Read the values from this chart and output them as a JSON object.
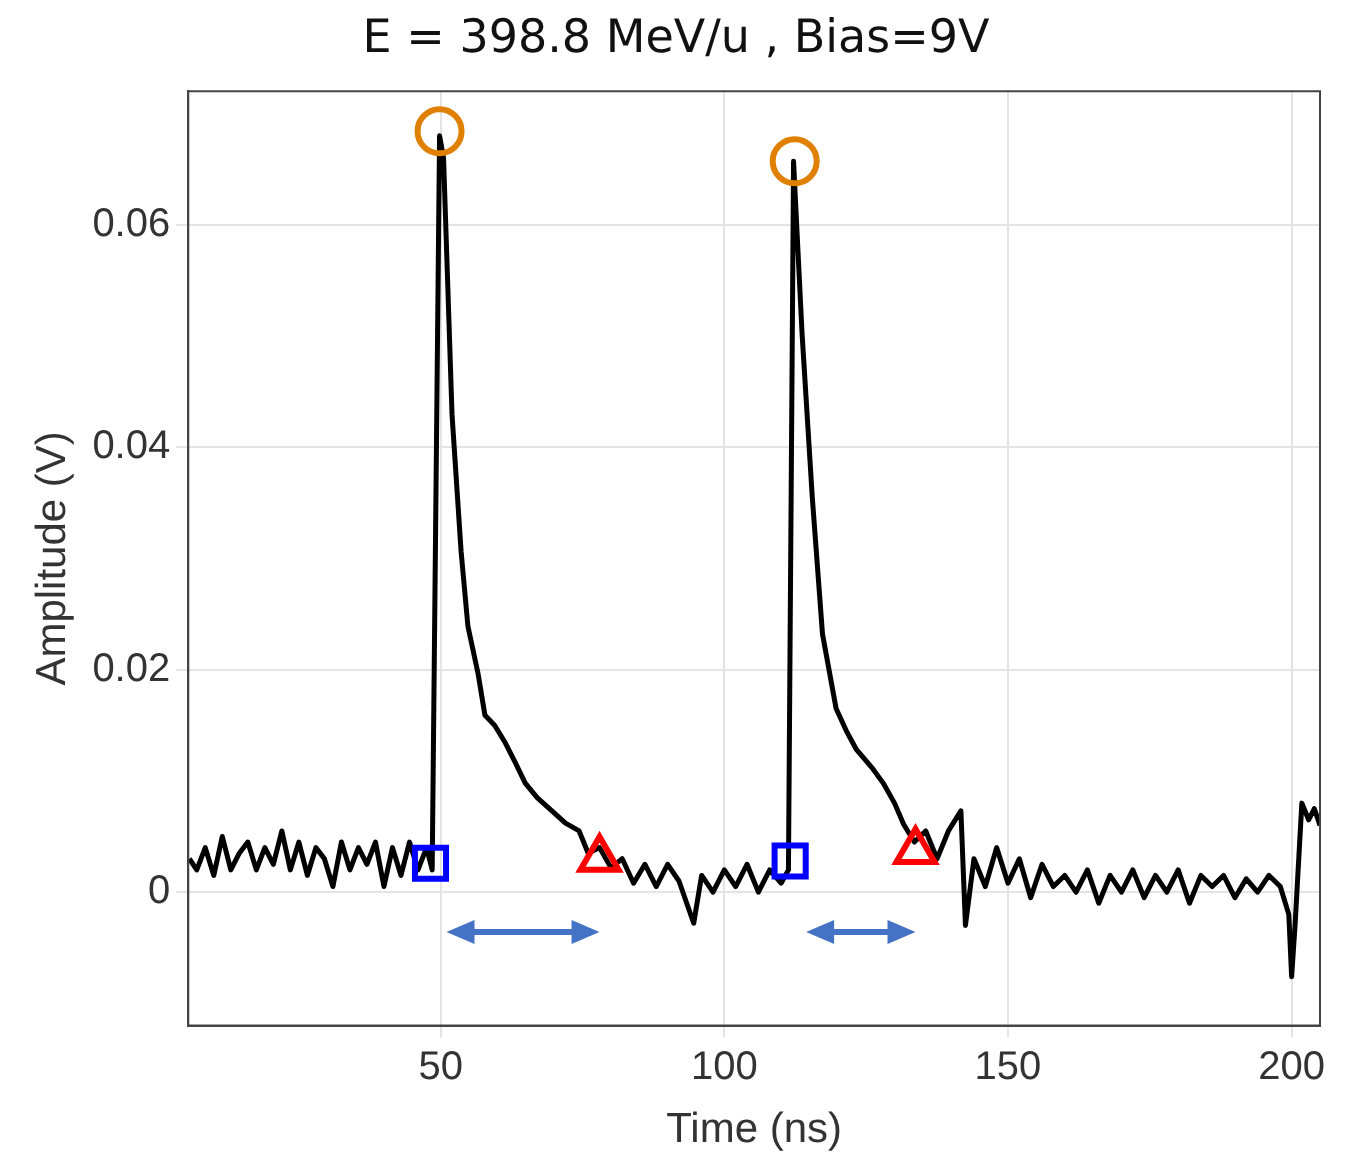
{
  "chart_data": {
    "type": "line",
    "title": "E = 398.8 MeV/u , Bias=9V",
    "xlabel": "Time (ns)",
    "ylabel": "Amplitude (V)",
    "xlim": [
      5.5,
      205
    ],
    "xticks": [
      50,
      100,
      150,
      200
    ],
    "ylim": [
      -0.012,
      0.072
    ],
    "yticks": [
      0,
      0.02,
      0.04,
      0.06
    ],
    "grid": true,
    "legend": false,
    "series": [
      {
        "color": "#000000",
        "marker": "none",
        "line_style": "solid",
        "x": [
          5.7,
          7,
          8.5,
          10,
          11.5,
          13,
          14.5,
          16,
          17.5,
          19,
          20.5,
          22,
          23.5,
          25,
          26.5,
          28,
          29.5,
          31,
          32.5,
          34,
          35.5,
          37,
          38.5,
          40,
          41.5,
          43,
          44.5,
          46,
          47.5,
          48.5,
          49.8,
          50.5,
          52,
          53.6,
          54.8,
          56.6,
          57.8,
          59.5,
          61.3,
          63,
          64.9,
          67,
          69.6,
          72,
          74.4,
          76,
          78,
          80,
          82,
          84,
          86,
          88,
          90,
          92,
          94.6,
          96,
          98,
          100,
          102,
          104,
          106,
          108,
          110,
          111.3,
          112.2,
          113.7,
          115.5,
          117.3,
          119.7,
          121.5,
          123.3,
          126,
          128,
          130,
          131.6,
          133.5,
          135.5,
          137.5,
          139.5,
          141.7,
          142.5,
          144,
          146,
          148,
          150,
          152,
          154,
          156,
          158,
          160,
          162,
          164,
          166,
          168,
          170,
          172,
          174,
          176,
          178,
          180,
          182,
          184,
          186,
          188,
          190,
          192,
          194,
          196,
          198,
          199.5,
          200,
          200.6,
          201.8,
          203,
          204,
          205
        ],
        "values": [
          0.003,
          0.002,
          0.004,
          0.0015,
          0.005,
          0.002,
          0.0035,
          0.0045,
          0.002,
          0.004,
          0.0025,
          0.0055,
          0.002,
          0.0045,
          0.0015,
          0.004,
          0.003,
          0.0005,
          0.0045,
          0.002,
          0.004,
          0.0025,
          0.0045,
          0.0005,
          0.004,
          0.0015,
          0.0045,
          0.002,
          0.004,
          0.002,
          0.068,
          0.066,
          0.0429,
          0.0306,
          0.0239,
          0.0196,
          0.0159,
          0.015,
          0.0135,
          0.0118,
          0.0098,
          0.0085,
          0.0073,
          0.0062,
          0.0055,
          0.0035,
          0.004,
          0.0022,
          0.003,
          0.0008,
          0.0025,
          0.0005,
          0.0025,
          0.001,
          -0.0028,
          0.0015,
          0.0,
          0.002,
          0.0005,
          0.0025,
          0.0,
          0.002,
          0.0008,
          0.002,
          0.0657,
          0.0502,
          0.0355,
          0.0232,
          0.0165,
          0.0145,
          0.0128,
          0.0112,
          0.0098,
          0.008,
          0.0061,
          0.0045,
          0.0055,
          0.003,
          0.0055,
          0.0073,
          -0.003,
          0.003,
          0.0005,
          0.004,
          0.0008,
          0.003,
          -0.0005,
          0.0025,
          0.0005,
          0.0015,
          0.0,
          0.002,
          -0.001,
          0.0015,
          0.0,
          0.002,
          -0.0005,
          0.0015,
          0.0,
          0.002,
          -0.001,
          0.0015,
          0.0005,
          0.0015,
          -0.0005,
          0.0012,
          0.0,
          0.0015,
          0.0005,
          -0.002,
          -0.0076,
          -0.003,
          0.008,
          0.0065,
          0.0075,
          0.006
        ]
      },
      {
        "type": "scatter",
        "color": "#e08000",
        "marker": "circle",
        "x": [
          49.8,
          112.4
        ],
        "values": [
          0.0684,
          0.0657
        ]
      },
      {
        "type": "scatter",
        "color": "#0000ff",
        "marker": "square",
        "x": [
          48.2,
          111.6
        ],
        "values": [
          0.0026,
          0.0028
        ]
      },
      {
        "type": "scatter",
        "color": "#ff0000",
        "marker": "triangle",
        "x": [
          78.0,
          133.7
        ],
        "values": [
          0.003,
          0.0037
        ]
      }
    ]
  }
}
